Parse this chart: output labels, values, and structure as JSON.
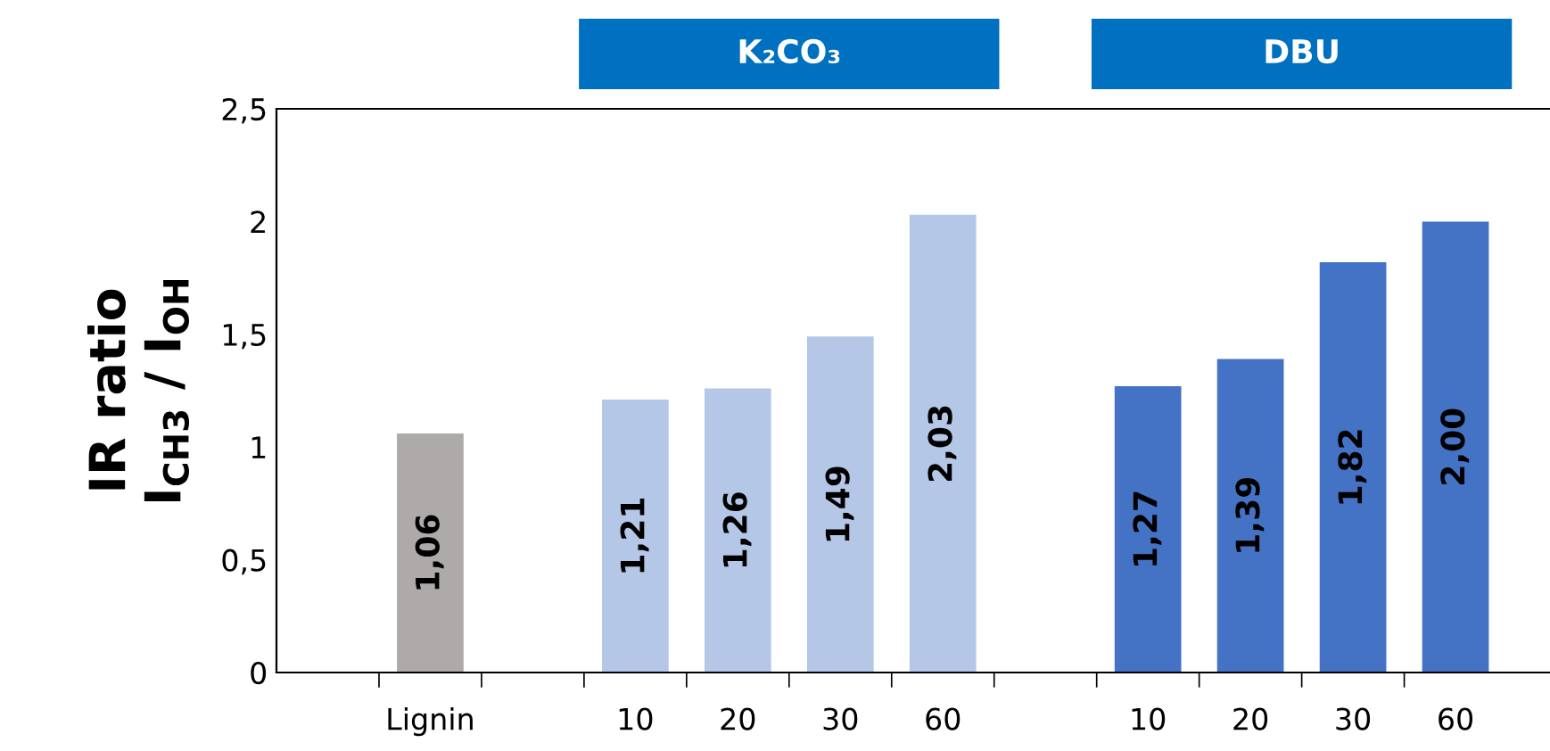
{
  "chart_data": {
    "type": "bar",
    "ylabel": "IR ratio\nI$_{CH3}$ / I$_{OH}$",
    "categories": [
      "Lignin",
      null,
      "10",
      "20",
      "30",
      "60",
      null,
      "10",
      "20",
      "30",
      "60"
    ],
    "series": [
      {
        "color": "#aeaaaa",
        "values": [
          1.06,
          null,
          null,
          null,
          null,
          null,
          null,
          null,
          null,
          null,
          null
        ],
        "value_labels": [
          "1,06",
          null,
          null,
          null,
          null,
          null,
          null,
          null,
          null,
          null,
          null
        ]
      },
      {
        "color": "#b4c7e7",
        "values": [
          null,
          null,
          1.21,
          1.26,
          1.49,
          2.03,
          null,
          null,
          null,
          null,
          null
        ],
        "value_labels": [
          null,
          null,
          "1,21",
          "1,26",
          "1,49",
          "2,03",
          null,
          null,
          null,
          null,
          null
        ]
      },
      {
        "color": "#4472c4",
        "values": [
          null,
          null,
          null,
          null,
          null,
          null,
          null,
          1.27,
          1.39,
          1.82,
          2.0
        ],
        "value_labels": [
          null,
          null,
          null,
          null,
          null,
          null,
          null,
          "1,27",
          "1,39",
          "1,82",
          "2,00"
        ]
      }
    ],
    "ylim": [
      0,
      2.5
    ],
    "yticks": [
      0,
      {
        "value": 0.5,
        "label": "0,5"
      },
      1,
      {
        "value": 1.5,
        "label": "1,5"
      },
      2,
      {
        "value": 2.5,
        "label": "2,5"
      }
    ],
    "annotations": [
      "K₂CO₃",
      "DBU"
    ],
    "grid": false,
    "legend": false
  }
}
